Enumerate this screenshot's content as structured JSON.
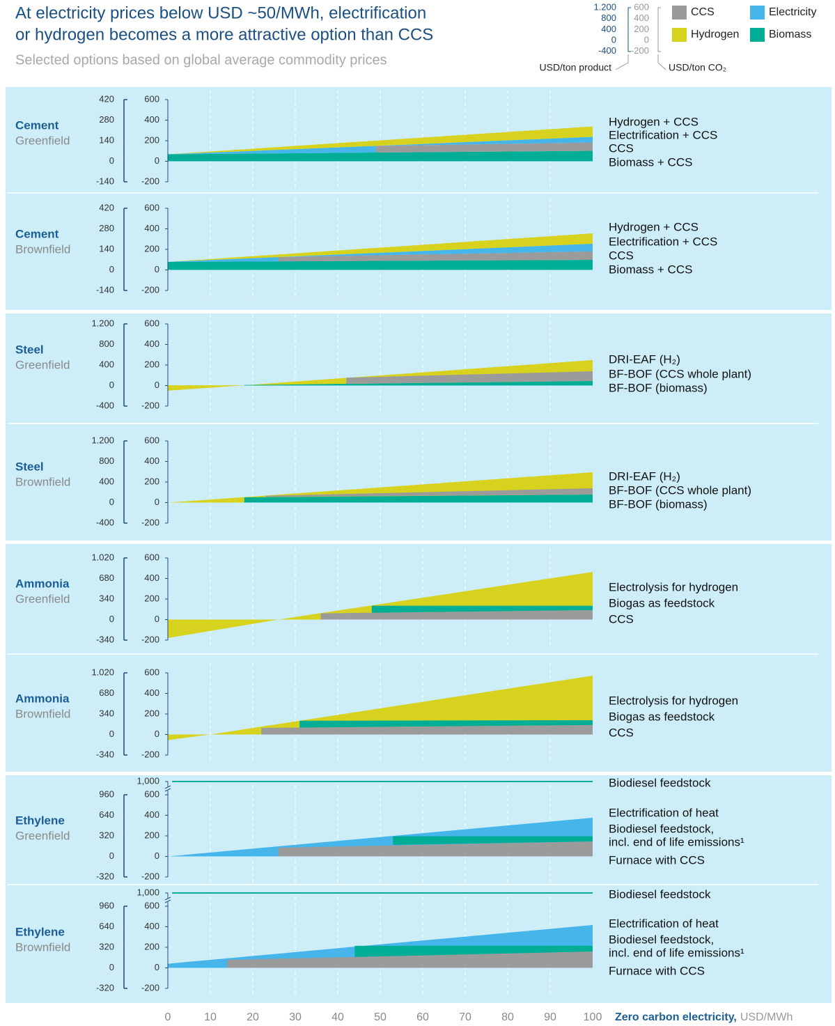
{
  "header": {
    "title_lines": [
      "At electricity prices below USD ~50/MWh, electrification",
      "or hydrogen becomes a more attractive option than CCS"
    ],
    "subtitle": "Selected options based on global average commodity prices"
  },
  "legend": {
    "series": [
      {
        "name": "CCS",
        "color": "#9b9b9b"
      },
      {
        "name": "Electricity",
        "color": "#45b5ea"
      },
      {
        "name": "Hydrogen",
        "color": "#d6d21e"
      },
      {
        "name": "Biomass",
        "color": "#00ae96"
      }
    ],
    "product_ticks": [
      {
        "value": 1200,
        "label": "1.200"
      },
      800,
      400,
      0,
      -400
    ],
    "co2_ticks": [
      600,
      400,
      200,
      0,
      -200
    ],
    "product_label": "USD/ton product",
    "co2_label": "USD/ton CO₂"
  },
  "x_axis": {
    "xlim": [
      0,
      100
    ],
    "xticks": [
      0,
      10,
      20,
      30,
      40,
      50,
      60,
      70,
      80,
      90,
      100
    ],
    "label": "Zero carbon electricity,",
    "unit": "USD/MWh"
  },
  "chart_data": [
    {
      "type": "area",
      "title": "Cement",
      "subtitle": "Greenfield",
      "ylim": [
        -200,
        600
      ],
      "yticks": [
        600,
        400,
        200,
        0,
        -200
      ],
      "y2lim": [
        -140,
        420
      ],
      "y2ticks": [
        420,
        280,
        140,
        0,
        -140
      ],
      "areas": [
        {
          "color": "#d6d21e",
          "x": [
            0,
            49,
            100,
            100
          ],
          "y": [
            68,
            149,
            237,
            339
          ]
        },
        {
          "color": "#00ae96",
          "x": [
            0,
            100,
            100,
            0
          ],
          "y": [
            0,
            0,
            102,
            68
          ]
        },
        {
          "color": "#45b5ea",
          "x": [
            0,
            49,
            49
          ],
          "y": [
            68,
            85,
            149
          ]
        },
        {
          "color": "#9b9b9b",
          "x": [
            49,
            100,
            100,
            49
          ],
          "y": [
            85,
            102,
            183,
            149
          ]
        },
        {
          "color": "#45b5ea",
          "x": [
            49,
            100,
            100
          ],
          "y": [
            149,
            183,
            237
          ]
        }
      ],
      "labels": [
        "Hydrogen + CCS",
        "Electrification + CCS",
        "CCS",
        "Biomass + CCS"
      ]
    },
    {
      "type": "area",
      "title": "Cement",
      "subtitle": "Brownfield",
      "ylim": [
        -200,
        600
      ],
      "yticks": [
        600,
        400,
        200,
        0,
        -200
      ],
      "y2lim": [
        -140,
        420
      ],
      "y2ticks": [
        420,
        280,
        140,
        0,
        -140
      ],
      "areas": [
        {
          "color": "#d6d21e",
          "x": [
            0,
            26,
            100,
            100
          ],
          "y": [
            78,
            125,
            254,
            356
          ]
        },
        {
          "color": "#00ae96",
          "x": [
            0,
            100,
            100,
            0
          ],
          "y": [
            0,
            0,
            98,
            78
          ]
        },
        {
          "color": "#45b5ea",
          "x": [
            0,
            26,
            26
          ],
          "y": [
            78,
            83,
            125
          ]
        },
        {
          "color": "#9b9b9b",
          "x": [
            26,
            100,
            100,
            26
          ],
          "y": [
            83,
            98,
            180,
            125
          ]
        },
        {
          "color": "#45b5ea",
          "x": [
            26,
            100,
            100
          ],
          "y": [
            125,
            180,
            254
          ]
        }
      ],
      "labels": [
        "Hydrogen + CCS",
        "Electrification + CCS",
        "CCS",
        "Biomass + CCS"
      ]
    },
    {
      "type": "area",
      "title": "Steel",
      "subtitle": "Greenfield",
      "ylim": [
        -200,
        600
      ],
      "yticks": [
        600,
        400,
        200,
        0,
        -200
      ],
      "y2lim": [
        -400,
        1200
      ],
      "y2ticks": [
        {
          "value": 1200,
          "label": "1.200"
        },
        800,
        400,
        0,
        -400
      ],
      "areas": [
        {
          "color": "#d6d21e",
          "x": [
            0,
            0,
            18
          ],
          "y": [
            -50,
            3,
            3
          ]
        },
        {
          "color": "#d6d21e",
          "x": [
            18,
            100,
            100
          ],
          "y": [
            3,
            45,
            248
          ]
        },
        {
          "color": "#00ae96",
          "x": [
            18,
            100,
            100,
            18
          ],
          "y": [
            0,
            0,
            45,
            5
          ]
        },
        {
          "color": "#9b9b9b",
          "x": [
            42,
            100,
            100,
            42
          ],
          "y": [
            17,
            45,
            139,
            76
          ]
        }
      ],
      "labels": [
        "DRI-EAF (H₂)",
        "BF-BOF (CCS whole plant)",
        "BF-BOF (biomass)"
      ]
    },
    {
      "type": "area",
      "title": "Steel",
      "subtitle": "Brownfield",
      "ylim": [
        -200,
        600
      ],
      "yticks": [
        600,
        400,
        200,
        0,
        -200
      ],
      "y2lim": [
        -400,
        1200
      ],
      "y2ticks": [
        {
          "value": 1200,
          "label": "1.200"
        },
        800,
        400,
        0,
        -400
      ],
      "areas": [
        {
          "color": "#d6d21e",
          "x": [
            0,
            100,
            100
          ],
          "y": [
            0,
            0,
            295
          ]
        },
        {
          "color": "#00ae96",
          "x": [
            18,
            100,
            100,
            18
          ],
          "y": [
            0,
            0,
            78,
            51
          ]
        },
        {
          "color": "#9b9b9b",
          "x": [
            23,
            100,
            100,
            23
          ],
          "y": [
            55,
            78,
            139,
            66
          ]
        }
      ],
      "labels": [
        "DRI-EAF (H₂)",
        "BF-BOF (CCS whole plant)",
        "BF-BOF (biomass)"
      ]
    },
    {
      "type": "area",
      "title": "Ammonia",
      "subtitle": "Greenfield",
      "ylim": [
        -200,
        600
      ],
      "yticks": [
        600,
        400,
        200,
        0,
        -200
      ],
      "y2lim": [
        -340,
        1020
      ],
      "y2ticks": [
        {
          "value": 1020,
          "label": "1.020"
        },
        680,
        340,
        0,
        -340
      ],
      "areas": [
        {
          "color": "#d6d21e",
          "x": [
            0,
            0,
            26
          ],
          "y": [
            0,
            -180,
            0
          ]
        },
        {
          "color": "#d6d21e",
          "x": [
            26,
            100,
            100
          ],
          "y": [
            0,
            0,
            464
          ]
        },
        {
          "color": "#9b9b9b",
          "x": [
            36,
            100,
            100,
            36
          ],
          "y": [
            0,
            0,
            92,
            60
          ]
        },
        {
          "color": "#00ae96",
          "x": [
            48,
            100,
            100,
            48
          ],
          "y": [
            66,
            92,
            135,
            135
          ]
        }
      ],
      "labels": [
        "Electrolysis for hydrogen",
        "Biogas as feedstock",
        "CCS"
      ]
    },
    {
      "type": "area",
      "title": "Ammonia",
      "subtitle": "Brownfield",
      "ylim": [
        -200,
        600
      ],
      "yticks": [
        600,
        400,
        200,
        0,
        -200
      ],
      "y2lim": [
        -340,
        1020
      ],
      "y2ticks": [
        {
          "value": 1020,
          "label": "1.020"
        },
        680,
        340,
        0,
        -340
      ],
      "areas": [
        {
          "color": "#d6d21e",
          "x": [
            0,
            0,
            10
          ],
          "y": [
            0,
            -55,
            0
          ]
        },
        {
          "color": "#d6d21e",
          "x": [
            10,
            100,
            100
          ],
          "y": [
            0,
            0,
            573
          ]
        },
        {
          "color": "#9b9b9b",
          "x": [
            22,
            100,
            100,
            22
          ],
          "y": [
            0,
            0,
            92,
            64
          ]
        },
        {
          "color": "#00ae96",
          "x": [
            31,
            100,
            100,
            31
          ],
          "y": [
            67,
            92,
            139,
            134
          ]
        }
      ],
      "labels": [
        "Electrolysis for hydrogen",
        "Biogas as feedstock",
        "CCS"
      ]
    },
    {
      "type": "area",
      "title": "Ethylene",
      "subtitle": "Greenfield",
      "ylim": [
        -200,
        600
      ],
      "yticks": [
        600,
        400,
        200,
        0,
        -200
      ],
      "y2lim": [
        -320,
        960
      ],
      "y2ticks": [
        960,
        640,
        320,
        0,
        -320
      ],
      "break_tick": {
        "value": 1000,
        "label": "1,000"
      },
      "reference_line": {
        "value": 1000,
        "color": "#00ae96"
      },
      "areas": [
        {
          "color": "#45b5ea",
          "x": [
            0,
            100,
            100
          ],
          "y": [
            0,
            0,
            376
          ]
        },
        {
          "color": "#9b9b9b",
          "x": [
            26,
            100,
            100,
            26
          ],
          "y": [
            0,
            0,
            146,
            85
          ]
        },
        {
          "color": "#00ae96",
          "x": [
            53,
            100,
            100,
            53
          ],
          "y": [
            112,
            146,
            196,
            196
          ]
        }
      ],
      "labels": [
        "Biodiesel feedstock",
        "Electrification of heat",
        "Biodiesel feedstock,",
        "incl. end of life emissions¹",
        "Furnace with CCS"
      ]
    },
    {
      "type": "area",
      "title": "Ethylene",
      "subtitle": "Brownfield",
      "ylim": [
        -200,
        600
      ],
      "yticks": [
        600,
        400,
        200,
        0,
        -200
      ],
      "y2lim": [
        -320,
        960
      ],
      "y2ticks": [
        960,
        640,
        320,
        0,
        -320
      ],
      "break_tick": {
        "value": 1000,
        "label": "1,000"
      },
      "reference_line": {
        "value": 1000,
        "color": "#00ae96"
      },
      "areas": [
        {
          "color": "#45b5ea",
          "x": [
            0,
            100,
            100,
            0
          ],
          "y": [
            0,
            0,
            417,
            40
          ]
        },
        {
          "color": "#9b9b9b",
          "x": [
            14,
            100,
            100,
            14
          ],
          "y": [
            0,
            0,
            159,
            78
          ]
        },
        {
          "color": "#00ae96",
          "x": [
            44,
            100,
            100,
            44
          ],
          "y": [
            106,
            159,
            214,
            214
          ]
        }
      ],
      "labels": [
        "Biodiesel feedstock",
        "Electrification of heat",
        "Biodiesel feedstock,",
        "incl. end of life emissions¹",
        "Furnace with CCS"
      ]
    }
  ]
}
